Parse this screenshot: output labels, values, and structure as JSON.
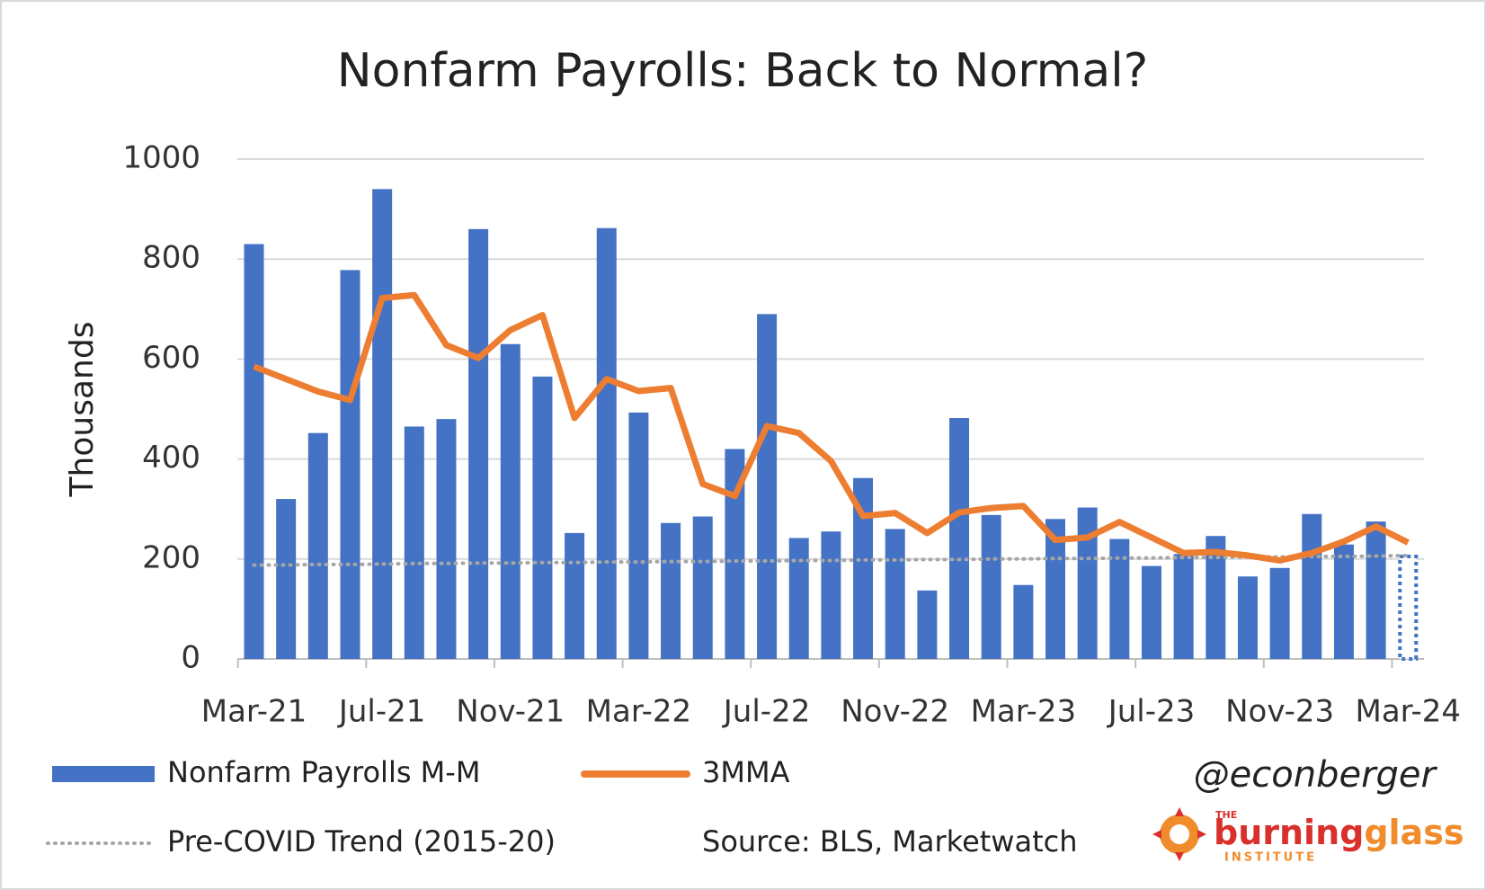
{
  "chart_data": {
    "type": "bar",
    "title": "Nonfarm Payrolls: Back to Normal?",
    "y_label": "Thousands",
    "categories": [
      "Mar-21",
      null,
      null,
      null,
      "Jul-21",
      null,
      null,
      null,
      "Nov-21",
      null,
      null,
      null,
      "Mar-22",
      null,
      null,
      null,
      "Jul-22",
      null,
      null,
      null,
      "Nov-22",
      null,
      null,
      null,
      "Mar-23",
      null,
      null,
      null,
      "Jul-23",
      null,
      null,
      null,
      "Nov-23",
      null,
      null,
      null,
      "Mar-24"
    ],
    "series": [
      {
        "name": "Nonfarm Payrolls M-M",
        "type": "bar",
        "color": "#4472c4",
        "values": [
          830,
          320,
          452,
          778,
          940,
          465,
          480,
          860,
          630,
          565,
          252,
          862,
          493,
          272,
          285,
          420,
          690,
          242,
          255,
          362,
          260,
          137,
          482,
          288,
          148,
          280,
          303,
          240,
          186,
          210,
          246,
          165,
          182,
          290,
          229,
          275,
          205
        ]
      },
      {
        "name": "3MMA",
        "type": "line",
        "color": "#ed7d31",
        "values": [
          585,
          560,
          535,
          518,
          722,
          728,
          628,
          602,
          658,
          688,
          482,
          560,
          536,
          542,
          350,
          326,
          466,
          452,
          396,
          286,
          292,
          252,
          293,
          302,
          306,
          238,
          243,
          274,
          243,
          212,
          214,
          207,
          197,
          212,
          235,
          265,
          233
        ]
      },
      {
        "name": "Pre-COVID Trend (2015-20)",
        "type": "dotted",
        "color": "#a6a6a6",
        "values": [
          188,
          188,
          189,
          189,
          190,
          191,
          191,
          192,
          192,
          193,
          193,
          194,
          194,
          195,
          195,
          196,
          196,
          197,
          197,
          198,
          198,
          199,
          199,
          200,
          200,
          201,
          201,
          202,
          202,
          203,
          203,
          204,
          204,
          205,
          205,
          206,
          207
        ]
      }
    ],
    "ylim": [
      0,
      1000
    ],
    "yticks": [
      0,
      200,
      400,
      600,
      800,
      1000
    ],
    "grid": true,
    "source": "Source: BLS, Marketwatch",
    "handle": "@econberger",
    "logo": {
      "top": "THE",
      "name1": "burning",
      "name2": "glass",
      "bottom": "INSTITUTE"
    }
  }
}
